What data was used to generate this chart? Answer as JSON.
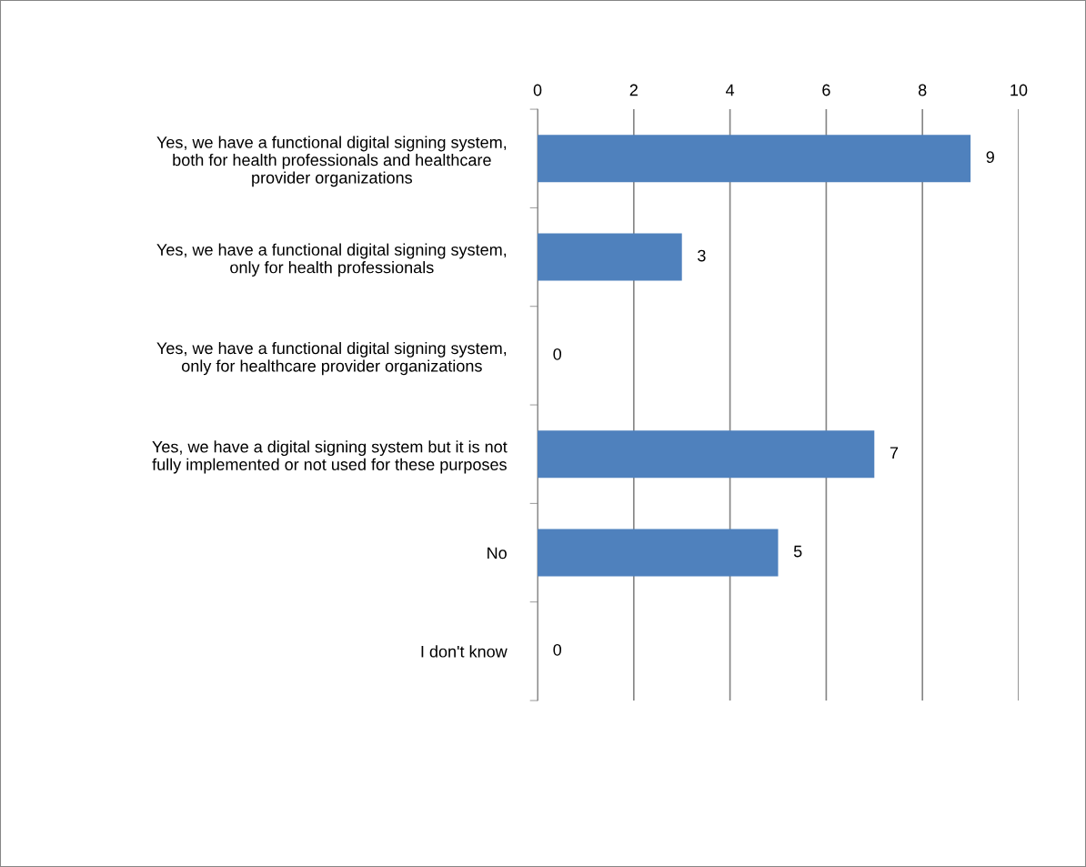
{
  "chart_data": {
    "type": "bar",
    "orientation": "horizontal",
    "categories": [
      "Yes, we have a functional digital signing system,\nboth for health professionals and healthcare\nprovider organizations",
      "Yes, we have a functional digital signing system,\nonly for health professionals",
      "Yes, we have a functional digital signing system,\nonly for healthcare provider organizations",
      "Yes, we have a digital signing system but it is not\nfully implemented or not used for these purposes",
      "No",
      "I don't know"
    ],
    "values": [
      9,
      3,
      0,
      7,
      5,
      0
    ],
    "color": "#4f81bd",
    "xlim": [
      0,
      10
    ],
    "xticks": [
      0,
      2,
      4,
      6,
      8,
      10
    ],
    "grid": "x",
    "data_labels": true,
    "legend": false
  }
}
